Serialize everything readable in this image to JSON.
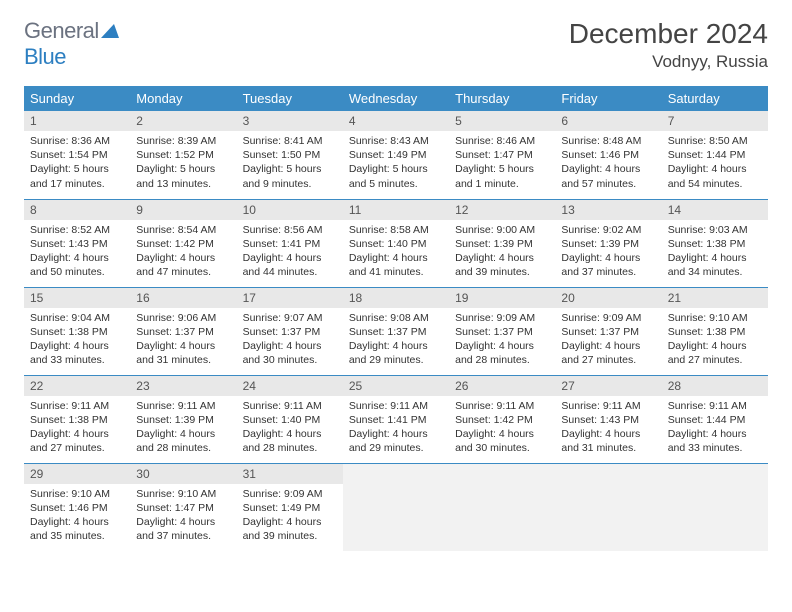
{
  "brand": {
    "part1": "General",
    "part2": "Blue"
  },
  "title": "December 2024",
  "location": "Vodnyy, Russia",
  "colors": {
    "header_bg": "#3b8bc4",
    "header_text": "#ffffff",
    "daynum_bg": "#e8e8e8",
    "border": "#3b8bc4",
    "logo_gray": "#6b7280",
    "logo_blue": "#2d7fc1",
    "empty_bg": "#f2f2f2"
  },
  "weekdays": [
    "Sunday",
    "Monday",
    "Tuesday",
    "Wednesday",
    "Thursday",
    "Friday",
    "Saturday"
  ],
  "weeks": [
    [
      {
        "n": "1",
        "sr": "Sunrise: 8:36 AM",
        "ss": "Sunset: 1:54 PM",
        "dl": "Daylight: 5 hours and 17 minutes."
      },
      {
        "n": "2",
        "sr": "Sunrise: 8:39 AM",
        "ss": "Sunset: 1:52 PM",
        "dl": "Daylight: 5 hours and 13 minutes."
      },
      {
        "n": "3",
        "sr": "Sunrise: 8:41 AM",
        "ss": "Sunset: 1:50 PM",
        "dl": "Daylight: 5 hours and 9 minutes."
      },
      {
        "n": "4",
        "sr": "Sunrise: 8:43 AM",
        "ss": "Sunset: 1:49 PM",
        "dl": "Daylight: 5 hours and 5 minutes."
      },
      {
        "n": "5",
        "sr": "Sunrise: 8:46 AM",
        "ss": "Sunset: 1:47 PM",
        "dl": "Daylight: 5 hours and 1 minute."
      },
      {
        "n": "6",
        "sr": "Sunrise: 8:48 AM",
        "ss": "Sunset: 1:46 PM",
        "dl": "Daylight: 4 hours and 57 minutes."
      },
      {
        "n": "7",
        "sr": "Sunrise: 8:50 AM",
        "ss": "Sunset: 1:44 PM",
        "dl": "Daylight: 4 hours and 54 minutes."
      }
    ],
    [
      {
        "n": "8",
        "sr": "Sunrise: 8:52 AM",
        "ss": "Sunset: 1:43 PM",
        "dl": "Daylight: 4 hours and 50 minutes."
      },
      {
        "n": "9",
        "sr": "Sunrise: 8:54 AM",
        "ss": "Sunset: 1:42 PM",
        "dl": "Daylight: 4 hours and 47 minutes."
      },
      {
        "n": "10",
        "sr": "Sunrise: 8:56 AM",
        "ss": "Sunset: 1:41 PM",
        "dl": "Daylight: 4 hours and 44 minutes."
      },
      {
        "n": "11",
        "sr": "Sunrise: 8:58 AM",
        "ss": "Sunset: 1:40 PM",
        "dl": "Daylight: 4 hours and 41 minutes."
      },
      {
        "n": "12",
        "sr": "Sunrise: 9:00 AM",
        "ss": "Sunset: 1:39 PM",
        "dl": "Daylight: 4 hours and 39 minutes."
      },
      {
        "n": "13",
        "sr": "Sunrise: 9:02 AM",
        "ss": "Sunset: 1:39 PM",
        "dl": "Daylight: 4 hours and 37 minutes."
      },
      {
        "n": "14",
        "sr": "Sunrise: 9:03 AM",
        "ss": "Sunset: 1:38 PM",
        "dl": "Daylight: 4 hours and 34 minutes."
      }
    ],
    [
      {
        "n": "15",
        "sr": "Sunrise: 9:04 AM",
        "ss": "Sunset: 1:38 PM",
        "dl": "Daylight: 4 hours and 33 minutes."
      },
      {
        "n": "16",
        "sr": "Sunrise: 9:06 AM",
        "ss": "Sunset: 1:37 PM",
        "dl": "Daylight: 4 hours and 31 minutes."
      },
      {
        "n": "17",
        "sr": "Sunrise: 9:07 AM",
        "ss": "Sunset: 1:37 PM",
        "dl": "Daylight: 4 hours and 30 minutes."
      },
      {
        "n": "18",
        "sr": "Sunrise: 9:08 AM",
        "ss": "Sunset: 1:37 PM",
        "dl": "Daylight: 4 hours and 29 minutes."
      },
      {
        "n": "19",
        "sr": "Sunrise: 9:09 AM",
        "ss": "Sunset: 1:37 PM",
        "dl": "Daylight: 4 hours and 28 minutes."
      },
      {
        "n": "20",
        "sr": "Sunrise: 9:09 AM",
        "ss": "Sunset: 1:37 PM",
        "dl": "Daylight: 4 hours and 27 minutes."
      },
      {
        "n": "21",
        "sr": "Sunrise: 9:10 AM",
        "ss": "Sunset: 1:38 PM",
        "dl": "Daylight: 4 hours and 27 minutes."
      }
    ],
    [
      {
        "n": "22",
        "sr": "Sunrise: 9:11 AM",
        "ss": "Sunset: 1:38 PM",
        "dl": "Daylight: 4 hours and 27 minutes."
      },
      {
        "n": "23",
        "sr": "Sunrise: 9:11 AM",
        "ss": "Sunset: 1:39 PM",
        "dl": "Daylight: 4 hours and 28 minutes."
      },
      {
        "n": "24",
        "sr": "Sunrise: 9:11 AM",
        "ss": "Sunset: 1:40 PM",
        "dl": "Daylight: 4 hours and 28 minutes."
      },
      {
        "n": "25",
        "sr": "Sunrise: 9:11 AM",
        "ss": "Sunset: 1:41 PM",
        "dl": "Daylight: 4 hours and 29 minutes."
      },
      {
        "n": "26",
        "sr": "Sunrise: 9:11 AM",
        "ss": "Sunset: 1:42 PM",
        "dl": "Daylight: 4 hours and 30 minutes."
      },
      {
        "n": "27",
        "sr": "Sunrise: 9:11 AM",
        "ss": "Sunset: 1:43 PM",
        "dl": "Daylight: 4 hours and 31 minutes."
      },
      {
        "n": "28",
        "sr": "Sunrise: 9:11 AM",
        "ss": "Sunset: 1:44 PM",
        "dl": "Daylight: 4 hours and 33 minutes."
      }
    ],
    [
      {
        "n": "29",
        "sr": "Sunrise: 9:10 AM",
        "ss": "Sunset: 1:46 PM",
        "dl": "Daylight: 4 hours and 35 minutes."
      },
      {
        "n": "30",
        "sr": "Sunrise: 9:10 AM",
        "ss": "Sunset: 1:47 PM",
        "dl": "Daylight: 4 hours and 37 minutes."
      },
      {
        "n": "31",
        "sr": "Sunrise: 9:09 AM",
        "ss": "Sunset: 1:49 PM",
        "dl": "Daylight: 4 hours and 39 minutes."
      },
      null,
      null,
      null,
      null
    ]
  ]
}
